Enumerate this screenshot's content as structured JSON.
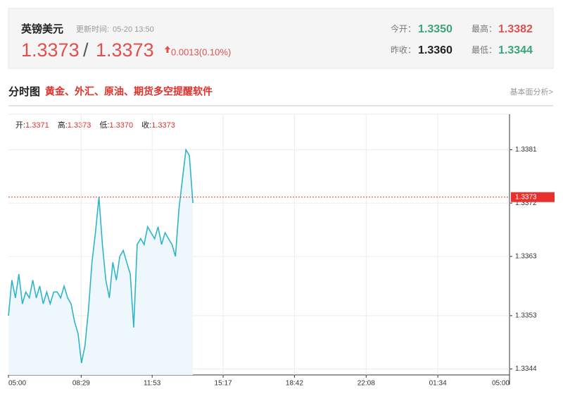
{
  "header": {
    "name": "英镑美元",
    "update_label": "更新时间:",
    "update_time": "05-20 13:50",
    "bid": "1.3373",
    "ask": "1.3373",
    "change": "0.0013(0.10%)",
    "open_label": "今开：",
    "open": "1.3350",
    "high_label": "最高：",
    "high": "1.3382",
    "prev_close_label": "昨收：",
    "prev_close": "1.3360",
    "low_label": "最低：",
    "low": "1.3344"
  },
  "section": {
    "title": "分时图",
    "ad": "黄金、外汇、原油、期货多空提醒软件",
    "link": "基本面分析>"
  },
  "quote_bar": [
    [
      "开:",
      "1.3371"
    ],
    [
      "高:",
      "1.3373"
    ],
    [
      "低:",
      "1.3370"
    ],
    [
      "收:",
      "1.3373"
    ]
  ],
  "chart_data": {
    "type": "area",
    "x": [
      "05:00",
      "05:10",
      "05:20",
      "05:30",
      "05:40",
      "05:50",
      "06:00",
      "06:10",
      "06:20",
      "06:30",
      "06:40",
      "06:50",
      "07:00",
      "07:10",
      "07:20",
      "07:30",
      "07:40",
      "07:50",
      "08:00",
      "08:10",
      "08:20",
      "08:30",
      "08:40",
      "08:50",
      "09:00",
      "09:10",
      "09:20",
      "09:30",
      "09:40",
      "09:50",
      "10:00",
      "10:10",
      "10:20",
      "10:30",
      "10:40",
      "10:50",
      "11:00",
      "11:10",
      "11:20",
      "11:30",
      "11:40",
      "11:50",
      "12:00",
      "12:10",
      "12:20",
      "12:30",
      "12:40",
      "12:50",
      "13:00",
      "13:10",
      "13:20",
      "13:30",
      "13:40",
      "13:50"
    ],
    "series": [
      {
        "name": "英镑美元",
        "color": "#2fb4c9",
        "fill": "#eef8fc",
        "values": [
          1.3353,
          1.3359,
          1.3356,
          1.336,
          1.3355,
          1.3357,
          1.3356,
          1.3359,
          1.3356,
          1.3358,
          1.3355,
          1.3357,
          1.3355,
          1.3357,
          1.3357,
          1.3356,
          1.3358,
          1.3356,
          1.3355,
          1.3352,
          1.335,
          1.3345,
          1.3348,
          1.3354,
          1.3362,
          1.3367,
          1.3373,
          1.3365,
          1.3359,
          1.3356,
          1.3362,
          1.3359,
          1.3363,
          1.3364,
          1.3362,
          1.336,
          1.3351,
          1.3365,
          1.3366,
          1.3365,
          1.3368,
          1.3367,
          1.3366,
          1.3368,
          1.3365,
          1.3367,
          1.3366,
          1.3365,
          1.3363,
          1.3371,
          1.3376,
          1.3381,
          1.338,
          1.3372
        ]
      }
    ],
    "xticks": [
      "05:00",
      "08:29",
      "11:53",
      "15:17",
      "18:42",
      "22:08",
      "01:34",
      "05:00"
    ],
    "ylim": [
      1.3343,
      1.3387
    ],
    "yticks": [
      1.3381,
      1.3372,
      1.3363,
      1.3353,
      1.3344
    ],
    "ref_line": 1.3373,
    "ref_color": "#e8302c",
    "grid": true
  }
}
